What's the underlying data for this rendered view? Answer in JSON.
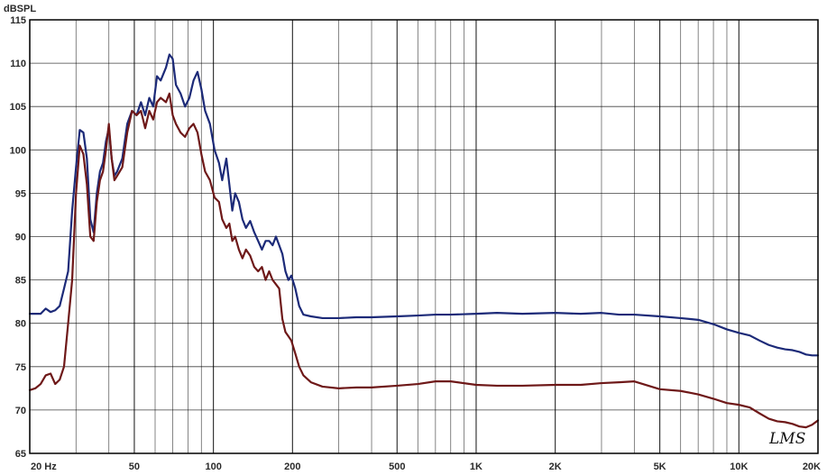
{
  "chart_data": {
    "type": "line",
    "title": "",
    "ylabel": "dBSPL",
    "xlabel": "",
    "xscale": "log",
    "xlim": [
      20,
      20000
    ],
    "ylim": [
      65,
      115
    ],
    "grid": true,
    "legend": "none",
    "watermark": "LMS",
    "colors": {
      "background": "#ffffff",
      "grid": "#000000",
      "frame": "#000000",
      "series_1": "#1c2a78",
      "series_2": "#6e1818"
    },
    "yticks": [
      {
        "value": 65,
        "label": "65"
      },
      {
        "value": 70,
        "label": "70"
      },
      {
        "value": 75,
        "label": "75"
      },
      {
        "value": 80,
        "label": "80"
      },
      {
        "value": 85,
        "label": "85"
      },
      {
        "value": 90,
        "label": "90"
      },
      {
        "value": 95,
        "label": "95"
      },
      {
        "value": 100,
        "label": "100"
      },
      {
        "value": 105,
        "label": "105"
      },
      {
        "value": 110,
        "label": "110"
      },
      {
        "value": 115,
        "label": "115"
      }
    ],
    "xticks": [
      {
        "value": 20,
        "label": "20  Hz"
      },
      {
        "value": 50,
        "label": "50"
      },
      {
        "value": 100,
        "label": "100"
      },
      {
        "value": 200,
        "label": "200"
      },
      {
        "value": 500,
        "label": "500"
      },
      {
        "value": 1000,
        "label": "1K"
      },
      {
        "value": 2000,
        "label": "2K"
      },
      {
        "value": 5000,
        "label": "5K"
      },
      {
        "value": 10000,
        "label": "10K"
      },
      {
        "value": 20000,
        "label": "20K"
      }
    ],
    "series": [
      {
        "color": "#1c2a78",
        "points": [
          [
            20,
            81.1
          ],
          [
            22,
            81.1
          ],
          [
            23,
            81.7
          ],
          [
            24,
            81.3
          ],
          [
            25,
            81.5
          ],
          [
            26,
            82.0
          ],
          [
            27,
            84.0
          ],
          [
            28,
            86.0
          ],
          [
            29,
            93.0
          ],
          [
            30,
            98.0
          ],
          [
            31,
            102.3
          ],
          [
            32,
            102.0
          ],
          [
            33,
            99.0
          ],
          [
            34,
            92.0
          ],
          [
            35,
            90.5
          ],
          [
            36,
            95.0
          ],
          [
            37,
            97.5
          ],
          [
            38,
            98.5
          ],
          [
            39,
            101.0
          ],
          [
            40,
            102.5
          ],
          [
            41,
            99.0
          ],
          [
            42,
            97.0
          ],
          [
            43,
            97.5
          ],
          [
            45,
            99.0
          ],
          [
            47,
            103.0
          ],
          [
            49,
            104.5
          ],
          [
            51,
            104.0
          ],
          [
            53,
            105.5
          ],
          [
            55,
            104.0
          ],
          [
            57,
            106.0
          ],
          [
            59,
            105.0
          ],
          [
            61,
            108.5
          ],
          [
            63,
            108.0
          ],
          [
            66,
            109.5
          ],
          [
            68,
            111.0
          ],
          [
            70,
            110.5
          ],
          [
            72,
            107.5
          ],
          [
            75,
            106.5
          ],
          [
            78,
            105.0
          ],
          [
            81,
            106.0
          ],
          [
            84,
            108.0
          ],
          [
            87,
            109.0
          ],
          [
            90,
            107.0
          ],
          [
            93,
            104.5
          ],
          [
            97,
            103.0
          ],
          [
            101,
            100.0
          ],
          [
            105,
            98.5
          ],
          [
            108,
            96.5
          ],
          [
            112,
            99.0
          ],
          [
            115,
            96.0
          ],
          [
            118,
            93.0
          ],
          [
            121,
            95.0
          ],
          [
            125,
            94.0
          ],
          [
            129,
            92.0
          ],
          [
            133,
            91.0
          ],
          [
            138,
            91.8
          ],
          [
            143,
            90.5
          ],
          [
            148,
            89.5
          ],
          [
            153,
            88.5
          ],
          [
            158,
            89.5
          ],
          [
            163,
            89.5
          ],
          [
            168,
            89.0
          ],
          [
            173,
            90.0
          ],
          [
            178,
            89.0
          ],
          [
            183,
            88.0
          ],
          [
            188,
            86.0
          ],
          [
            193,
            85.0
          ],
          [
            198,
            85.5
          ],
          [
            205,
            84.0
          ],
          [
            212,
            82.0
          ],
          [
            220,
            81.0
          ],
          [
            235,
            80.8
          ],
          [
            260,
            80.6
          ],
          [
            300,
            80.6
          ],
          [
            350,
            80.7
          ],
          [
            400,
            80.7
          ],
          [
            500,
            80.8
          ],
          [
            600,
            80.9
          ],
          [
            700,
            81.0
          ],
          [
            800,
            81.0
          ],
          [
            1000,
            81.1
          ],
          [
            1200,
            81.2
          ],
          [
            1500,
            81.1
          ],
          [
            2000,
            81.2
          ],
          [
            2500,
            81.1
          ],
          [
            3000,
            81.2
          ],
          [
            3500,
            81.0
          ],
          [
            4000,
            81.0
          ],
          [
            5000,
            80.8
          ],
          [
            6000,
            80.6
          ],
          [
            7000,
            80.4
          ],
          [
            8000,
            79.9
          ],
          [
            9000,
            79.3
          ],
          [
            10000,
            78.9
          ],
          [
            11000,
            78.6
          ],
          [
            12000,
            78.0
          ],
          [
            13000,
            77.5
          ],
          [
            14000,
            77.2
          ],
          [
            15000,
            77.0
          ],
          [
            16000,
            76.9
          ],
          [
            17000,
            76.7
          ],
          [
            18000,
            76.4
          ],
          [
            19000,
            76.3
          ],
          [
            20000,
            76.3
          ]
        ]
      },
      {
        "color": "#6e1818",
        "points": [
          [
            20,
            72.3
          ],
          [
            21,
            72.5
          ],
          [
            22,
            73.0
          ],
          [
            23,
            74.0
          ],
          [
            24,
            74.2
          ],
          [
            25,
            73.0
          ],
          [
            26,
            73.5
          ],
          [
            27,
            75.0
          ],
          [
            28,
            80.0
          ],
          [
            29,
            85.0
          ],
          [
            30,
            95.0
          ],
          [
            31,
            100.5
          ],
          [
            32,
            99.5
          ],
          [
            33,
            96.0
          ],
          [
            34,
            90.0
          ],
          [
            35,
            89.5
          ],
          [
            36,
            94.0
          ],
          [
            37,
            96.5
          ],
          [
            38,
            97.5
          ],
          [
            39,
            100.0
          ],
          [
            40,
            103.0
          ],
          [
            41,
            99.0
          ],
          [
            42,
            96.5
          ],
          [
            43,
            97.0
          ],
          [
            45,
            98.0
          ],
          [
            47,
            102.0
          ],
          [
            49,
            104.5
          ],
          [
            51,
            104.0
          ],
          [
            53,
            104.5
          ],
          [
            55,
            102.5
          ],
          [
            57,
            104.5
          ],
          [
            59,
            103.5
          ],
          [
            61,
            105.5
          ],
          [
            63,
            106.0
          ],
          [
            66,
            105.5
          ],
          [
            68,
            106.5
          ],
          [
            70,
            104.0
          ],
          [
            72,
            103.0
          ],
          [
            75,
            102.0
          ],
          [
            78,
            101.5
          ],
          [
            81,
            102.5
          ],
          [
            84,
            103.0
          ],
          [
            87,
            102.0
          ],
          [
            90,
            99.5
          ],
          [
            93,
            97.5
          ],
          [
            97,
            96.5
          ],
          [
            101,
            94.5
          ],
          [
            105,
            94.0
          ],
          [
            108,
            92.0
          ],
          [
            112,
            91.0
          ],
          [
            115,
            91.5
          ],
          [
            118,
            89.5
          ],
          [
            121,
            90.0
          ],
          [
            125,
            88.5
          ],
          [
            129,
            87.5
          ],
          [
            133,
            88.5
          ],
          [
            138,
            87.8
          ],
          [
            143,
            86.5
          ],
          [
            148,
            86.0
          ],
          [
            153,
            86.5
          ],
          [
            158,
            85.0
          ],
          [
            163,
            86.0
          ],
          [
            168,
            85.0
          ],
          [
            173,
            84.5
          ],
          [
            178,
            84.0
          ],
          [
            183,
            80.5
          ],
          [
            188,
            79.0
          ],
          [
            193,
            78.5
          ],
          [
            198,
            78.0
          ],
          [
            205,
            76.5
          ],
          [
            212,
            75.0
          ],
          [
            220,
            74.0
          ],
          [
            235,
            73.2
          ],
          [
            260,
            72.7
          ],
          [
            300,
            72.5
          ],
          [
            350,
            72.6
          ],
          [
            400,
            72.6
          ],
          [
            500,
            72.8
          ],
          [
            600,
            73.0
          ],
          [
            700,
            73.3
          ],
          [
            800,
            73.3
          ],
          [
            1000,
            72.9
          ],
          [
            1200,
            72.8
          ],
          [
            1500,
            72.8
          ],
          [
            2000,
            72.9
          ],
          [
            2500,
            72.9
          ],
          [
            3000,
            73.1
          ],
          [
            3500,
            73.2
          ],
          [
            4000,
            73.3
          ],
          [
            5000,
            72.4
          ],
          [
            6000,
            72.2
          ],
          [
            7000,
            71.8
          ],
          [
            8000,
            71.3
          ],
          [
            9000,
            70.8
          ],
          [
            10000,
            70.6
          ],
          [
            11000,
            70.3
          ],
          [
            12000,
            69.6
          ],
          [
            13000,
            69.0
          ],
          [
            14000,
            68.7
          ],
          [
            15000,
            68.6
          ],
          [
            16000,
            68.4
          ],
          [
            17000,
            68.1
          ],
          [
            18000,
            68.0
          ],
          [
            19000,
            68.3
          ],
          [
            20000,
            68.8
          ]
        ]
      }
    ]
  }
}
